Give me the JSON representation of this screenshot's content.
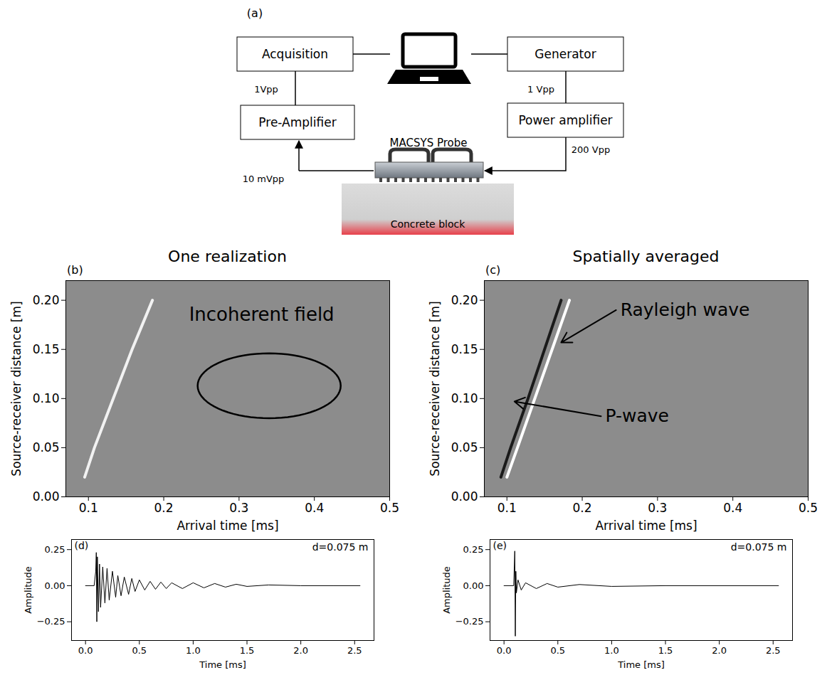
{
  "diagram": {
    "label": "(a)",
    "boxes": {
      "acquisition": "Acquisition",
      "generator": "Generator",
      "preamp": "Pre-Amplifier",
      "power": "Power amplifier"
    },
    "signals": {
      "acq_preamp": "1Vpp",
      "gen_power": "1 Vpp",
      "probe_preamp": "10 mVpp",
      "power_probe": "200 Vpp"
    },
    "probe": "MACSYS Probe",
    "specimen": "Concrete block"
  },
  "chart_data": [
    {
      "type": "line",
      "label": "(b)",
      "title": "One realization",
      "xlabel": "Arrival time [ms]",
      "ylabel": "Source-receiver distance [m]",
      "xlim": [
        0.07,
        0.5
      ],
      "xticks": [
        0.1,
        0.2,
        0.3,
        0.4,
        0.5
      ],
      "ylim": [
        0,
        0.22
      ],
      "yticks": [
        {
          "value": 0,
          "label": "0.00"
        },
        {
          "value": 0.05,
          "label": "0.05"
        },
        {
          "value": 0.1,
          "label": "0.10"
        },
        {
          "value": 0.15,
          "label": "0.15"
        },
        {
          "value": 0.2,
          "label": "0.20"
        }
      ],
      "series": [
        {
          "color": "#f2f2f2",
          "x": [
            0.095,
            0.108,
            0.133,
            0.158,
            0.185
          ],
          "values": [
            0.02,
            0.05,
            0.1,
            0.15,
            0.2
          ]
        }
      ],
      "annotations": [
        {
          "text": "Incoherent field",
          "x": 0.33,
          "y": 0.185
        }
      ],
      "ellipse": {
        "x": 0.34,
        "y": 0.113,
        "rx": 0.095,
        "ry": 0.033
      }
    },
    {
      "type": "line",
      "label": "(c)",
      "title": "Spatially averaged",
      "xlabel": "Arrival time [ms]",
      "ylabel": "Source-receiver distance [m]",
      "xlim": [
        0.07,
        0.5
      ],
      "xticks": [
        0.1,
        0.2,
        0.3,
        0.4,
        0.5
      ],
      "ylim": [
        0,
        0.22
      ],
      "yticks": [
        {
          "value": 0,
          "label": "0.00"
        },
        {
          "value": 0.05,
          "label": "0.05"
        },
        {
          "value": 0.1,
          "label": "0.10"
        },
        {
          "value": 0.15,
          "label": "0.15"
        },
        {
          "value": 0.2,
          "label": "0.20"
        }
      ],
      "series": [
        {
          "name": "P-wave",
          "color": "#1a1a1a",
          "x": [
            0.092,
            0.105,
            0.128,
            0.15,
            0.172
          ],
          "values": [
            0.02,
            0.05,
            0.1,
            0.15,
            0.2
          ],
          "label_x": 0.225,
          "label_y": 0.082,
          "arrow_x": 0.11,
          "arrow_y": 0.097
        },
        {
          "name": "Rayleigh wave",
          "color": "#ffffff",
          "x": [
            0.1,
            0.114,
            0.137,
            0.16,
            0.183
          ],
          "values": [
            0.02,
            0.05,
            0.1,
            0.15,
            0.2
          ],
          "label_x": 0.245,
          "label_y": 0.19,
          "arrow_x": 0.172,
          "arrow_y": 0.157
        }
      ]
    },
    {
      "type": "line",
      "label": "(d)",
      "xlabel": "Time [ms]",
      "ylabel": "Amplitude",
      "xlim": [
        -0.13,
        2.68
      ],
      "xticks": [
        {
          "value": 0,
          "label": "0.0"
        },
        0.5,
        {
          "value": 1,
          "label": "1.0"
        },
        1.5,
        {
          "value": 2,
          "label": "2.0"
        },
        2.5
      ],
      "ylim": [
        -0.38,
        0.32
      ],
      "yticks": [
        {
          "value": -0.25,
          "label": "−0.25"
        },
        {
          "value": 0,
          "label": "0.00"
        },
        0.25
      ],
      "annotations": [
        {
          "text": "d=0.075 m"
        }
      ],
      "series": [
        {
          "color": "#000000",
          "x": [
            0.0,
            0.08,
            0.095,
            0.1,
            0.105,
            0.11,
            0.12,
            0.13,
            0.14,
            0.16,
            0.18,
            0.2,
            0.22,
            0.25,
            0.28,
            0.3,
            0.33,
            0.36,
            0.4,
            0.43,
            0.46,
            0.5,
            0.55,
            0.6,
            0.65,
            0.7,
            0.75,
            0.8,
            0.9,
            1.0,
            1.1,
            1.2,
            1.3,
            1.4,
            1.5,
            1.7,
            2.0,
            2.3,
            2.55
          ],
          "values": [
            0,
            0,
            0.1,
            0.23,
            -0.25,
            0.2,
            -0.18,
            0.15,
            -0.15,
            0.13,
            -0.12,
            0.12,
            -0.1,
            0.1,
            -0.08,
            0.07,
            -0.07,
            0.06,
            -0.06,
            0.05,
            -0.04,
            0.04,
            -0.03,
            0.03,
            -0.025,
            0.025,
            -0.02,
            0.02,
            -0.02,
            0.02,
            -0.015,
            0.015,
            -0.01,
            0.01,
            -0.005,
            0.005,
            0,
            0,
            0
          ]
        }
      ]
    },
    {
      "type": "line",
      "label": "(e)",
      "xlabel": "Time [ms]",
      "ylabel": "Amplitude",
      "xlim": [
        -0.13,
        2.68
      ],
      "xticks": [
        {
          "value": 0,
          "label": "0.0"
        },
        0.5,
        {
          "value": 1,
          "label": "1.0"
        },
        1.5,
        {
          "value": 2,
          "label": "2.0"
        },
        2.5
      ],
      "ylim": [
        -0.38,
        0.32
      ],
      "yticks": [
        {
          "value": -0.25,
          "label": "−0.25"
        },
        {
          "value": 0,
          "label": "0.00"
        },
        0.25
      ],
      "annotations": [
        {
          "text": "d=0.075 m"
        }
      ],
      "series": [
        {
          "color": "#000000",
          "x": [
            0.0,
            0.09,
            0.1,
            0.105,
            0.11,
            0.115,
            0.13,
            0.16,
            0.2,
            0.3,
            0.4,
            0.5,
            0.7,
            1.0,
            1.5,
            2.55
          ],
          "values": [
            0,
            0,
            0.24,
            -0.35,
            0.1,
            -0.05,
            0.04,
            -0.03,
            0.02,
            -0.02,
            0.015,
            -0.01,
            0.008,
            -0.005,
            0,
            0
          ]
        }
      ]
    }
  ]
}
